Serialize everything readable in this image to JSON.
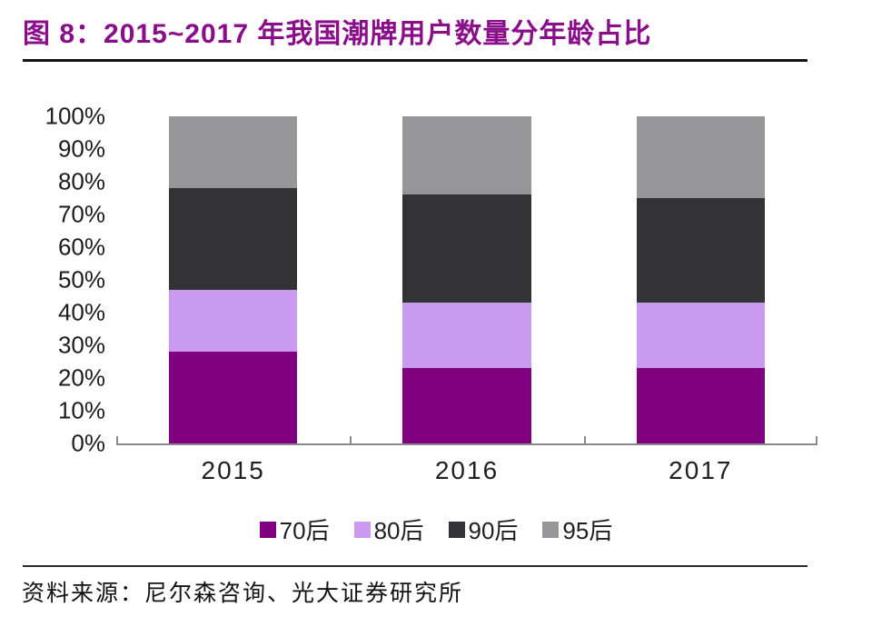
{
  "figure": {
    "title": "图 8：2015~2017 年我国潮牌用户数量分年龄占比",
    "source": "资料来源：尼尔森咨询、光大证券研究所"
  },
  "colors": {
    "title_accent": "#8a0d8a",
    "axis": "#8a8a8a",
    "rule": "#141414"
  },
  "chart_data": {
    "type": "bar",
    "stacked": true,
    "title": "2015~2017 年我国潮牌用户数量分年龄占比",
    "xlabel": "",
    "ylabel": "",
    "ylim": [
      0,
      100
    ],
    "grid": false,
    "legend_position": "bottom",
    "categories": [
      "2015",
      "2016",
      "2017"
    ],
    "yticks": [
      "100%",
      "90%",
      "80%",
      "70%",
      "60%",
      "50%",
      "40%",
      "30%",
      "20%",
      "10%",
      "0%"
    ],
    "series": [
      {
        "name": "70后",
        "color": "#800080",
        "values": [
          28,
          23,
          23
        ]
      },
      {
        "name": "80后",
        "color": "#c99bf0",
        "values": [
          19,
          20,
          20
        ]
      },
      {
        "name": "90后",
        "color": "#333336",
        "values": [
          31,
          33,
          32
        ]
      },
      {
        "name": "95后",
        "color": "#969699",
        "values": [
          22,
          24,
          25
        ]
      }
    ]
  }
}
